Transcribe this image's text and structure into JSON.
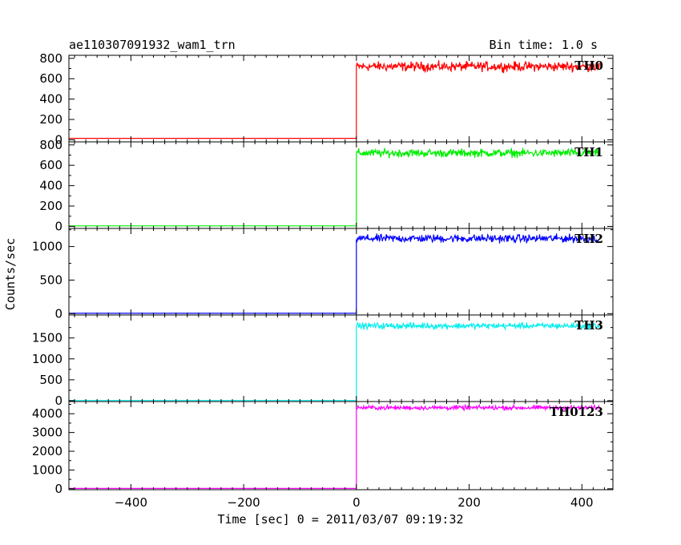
{
  "chart_data": {
    "type": "line",
    "title": "ae110307091932_wam1_trn",
    "subtitle": "Bin time: 1.0 s",
    "xlabel": "Time [sec] 0 = 2011/03/07 09:19:32",
    "ylabel": "Counts/sec",
    "xlim": [
      -510,
      455
    ],
    "x_ticks": [
      -400,
      -200,
      0,
      200,
      400
    ],
    "onset_x": 0,
    "grid": false,
    "panels": [
      {
        "name": "TH0",
        "color": "#ff0000",
        "ylim": [
          -20,
          830
        ],
        "y_ticks": [
          0,
          200,
          400,
          600,
          800
        ],
        "pre_level": 15,
        "post_level": 720,
        "noise": 35
      },
      {
        "name": "TH1",
        "color": "#00ee00",
        "ylim": [
          -20,
          830
        ],
        "y_ticks": [
          0,
          200,
          400,
          600,
          800
        ],
        "pre_level": 5,
        "post_level": 720,
        "noise": 30
      },
      {
        "name": "TH2",
        "color": "#0000ff",
        "ylim": [
          -20,
          1270
        ],
        "y_ticks": [
          0,
          500,
          1000
        ],
        "pre_level": 5,
        "post_level": 1120,
        "noise": 45
      },
      {
        "name": "TH3",
        "color": "#00eeee",
        "ylim": [
          -20,
          2050
        ],
        "y_ticks": [
          0,
          500,
          1000,
          1500
        ],
        "pre_level": 5,
        "post_level": 1790,
        "noise": 55
      },
      {
        "name": "TH0123",
        "color": "#ff00ff",
        "ylim": [
          -50,
          4650
        ],
        "y_ticks": [
          0,
          1000,
          2000,
          3000,
          4000
        ],
        "pre_level": 20,
        "post_level": 4320,
        "noise": 90
      }
    ]
  }
}
